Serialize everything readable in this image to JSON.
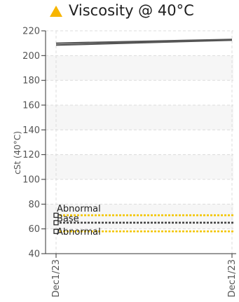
{
  "title": "Viscosity @ 40°C",
  "header": {
    "status_icon": "warning-triangle-icon",
    "status_color": "#f7b500"
  },
  "chart_data": {
    "type": "line",
    "title": "Viscosity @ 40°C",
    "xlabel": "",
    "ylabel": "cSt (40°C)",
    "ylim": [
      40,
      220
    ],
    "yticks": [
      40,
      60,
      80,
      100,
      120,
      140,
      160,
      180,
      200,
      220
    ],
    "x_tick_labels": [
      "Dec1/23",
      "Dec1/23"
    ],
    "grid": true,
    "series": [
      {
        "values": [
          208.5,
          212.5
        ],
        "color": "#555555",
        "style": "solid"
      },
      {
        "values": [
          210,
          213
        ],
        "color": "#555555",
        "style": "solid"
      }
    ],
    "reference_lines": [
      {
        "label": "Abnormal",
        "value": 71,
        "color": "#f2c500",
        "style": "dotted"
      },
      {
        "label": "Base",
        "value": 65,
        "color": "#444444",
        "style": "dotted"
      },
      {
        "label": "Abnormal",
        "value": 58,
        "color": "#f2c500",
        "style": "dotted"
      }
    ]
  }
}
